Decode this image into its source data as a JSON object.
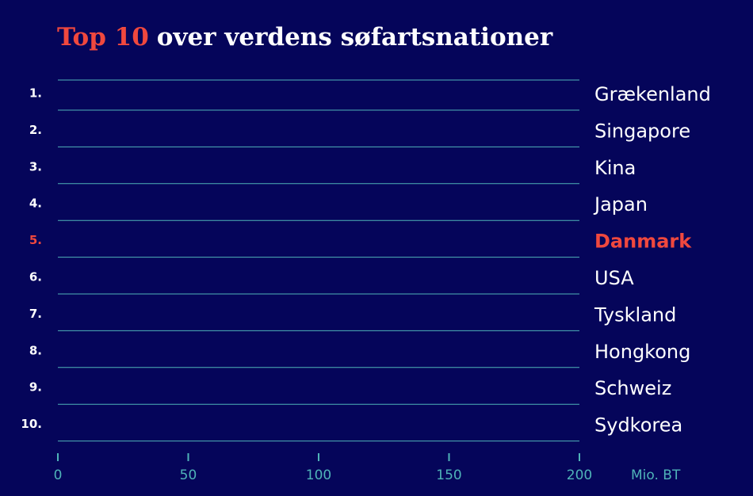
{
  "chart_data": {
    "type": "bar",
    "title_highlight": "Top 10",
    "title_rest": "over verdens søfartsnationer",
    "ranks": [
      "1.",
      "2.",
      "3.",
      "4.",
      "5.",
      "6.",
      "7.",
      "8.",
      "9.",
      "10."
    ],
    "categories": [
      "Grækenland",
      "Singapore",
      "Kina",
      "Japan",
      "Danmark",
      "USA",
      "Tyskland",
      "Hongkong",
      "Schweiz",
      "Sydkorea"
    ],
    "highlight": 4,
    "highlight_color": "#f0483e",
    "text_color": "#ffffff",
    "axis_color": "#4fb3b8",
    "xlim": [
      0,
      200
    ],
    "xticks": [
      0,
      50,
      100,
      150,
      200
    ],
    "x_label": "Mio. BT"
  }
}
